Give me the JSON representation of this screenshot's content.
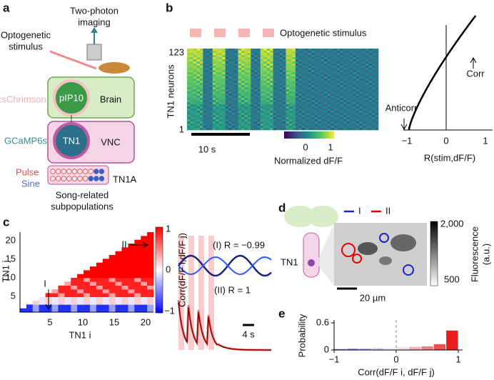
{
  "panel_a": {
    "label": "a",
    "imaging": [
      "Two-photon",
      "imaging"
    ],
    "stimulus": [
      "Optogenetic",
      "stimulus"
    ],
    "cschrimson": "csChrimson",
    "pip10": "pIP10",
    "brain": "Brain",
    "gcamp": "GCaMP6s",
    "tn1": "TN1",
    "vnc": "VNC",
    "pulse": "Pulse",
    "sine": "Sine",
    "tn1a": "TN1A",
    "subpop": [
      "Song-related",
      "subpopulations"
    ]
  },
  "panel_b": {
    "label": "b",
    "stimulus": "Optogenetic stimulus",
    "y_top": "123",
    "y_bottom": "1",
    "y_label": "TN1 neurons",
    "scale": "10 s",
    "cbar_ticks": [
      "0",
      "1"
    ],
    "cbar_label": "Normalized dF/F",
    "anticorr": "Anticorr",
    "corr": "Corr",
    "x_ticks": [
      "−1",
      "0",
      "1"
    ],
    "x_label": "R(stim,dF/F)"
  },
  "panel_c": {
    "label": "c",
    "y_ticks": [
      "20",
      "15",
      "10",
      "5"
    ],
    "x_ticks": [
      "5",
      "10",
      "15",
      "20"
    ],
    "x_label": "TN1 i",
    "y_label": "TN1 j",
    "pair_1": "I",
    "pair_2": "II",
    "cbar_ticks": [
      "1",
      "0",
      "−1"
    ],
    "cbar_label": "Corr(dF/F i,dF/F j)",
    "trace_1": "(I) R = −0.99",
    "trace_2": "(II) R = 1",
    "scale": "4 s"
  },
  "panel_d": {
    "label": "d",
    "legend": [
      "I",
      "II"
    ],
    "tn1": "TN1",
    "scale": "20 µm",
    "cbar_ticks": [
      "2,000",
      "500"
    ],
    "cbar_label": [
      "Fluorescence",
      "(a.u.)"
    ]
  },
  "panel_e": {
    "label": "e",
    "y_label": "Probability",
    "x_label": "Corr(dF/F i, dF/F j)",
    "bins": [
      -1,
      -0.8,
      -0.6,
      -0.4,
      -0.2,
      0,
      0.2,
      0.4,
      0.6,
      0.8,
      1
    ],
    "probabilities": [
      0.02,
      0.03,
      0.03,
      0.04,
      0.05,
      0.06,
      0.07,
      0.08,
      0.13,
      0.43
    ],
    "ylim": [
      0,
      0.6
    ],
    "yticks": [
      0,
      0.6
    ],
    "xlim": [
      -1,
      1
    ],
    "xticks": [
      {
        "value": -1,
        "label": "−1"
      },
      0,
      1
    ]
  }
}
